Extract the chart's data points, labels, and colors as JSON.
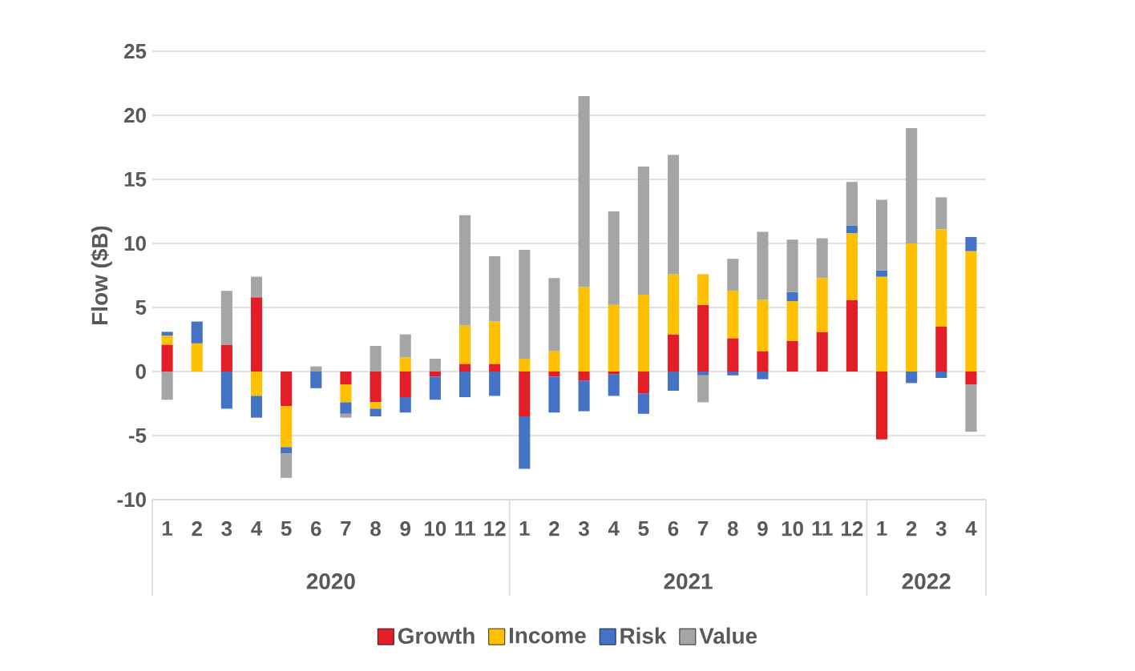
{
  "chart_data": {
    "type": "bar",
    "stacked": true,
    "ylabel": "Flow ($B)",
    "categories": [
      "1",
      "2",
      "3",
      "4",
      "5",
      "6",
      "7",
      "8",
      "9",
      "10",
      "11",
      "12",
      "1",
      "2",
      "3",
      "4",
      "5",
      "6",
      "7",
      "8",
      "9",
      "10",
      "11",
      "12",
      "1",
      "2",
      "3",
      "4"
    ],
    "annotations": [
      "2020",
      "2021",
      "2022"
    ],
    "series": [
      {
        "name": "Growth",
        "color": "#e41e26",
        "values": [
          2.1,
          0,
          2.1,
          5.8,
          -2.7,
          0,
          -1.0,
          -2.4,
          -2.0,
          -0.4,
          0.6,
          0.6,
          -3.5,
          -0.4,
          -0.7,
          -0.2,
          -1.7,
          2.9,
          5.2,
          2.6,
          1.6,
          2.4,
          3.1,
          5.6,
          -5.3,
          0,
          3.5,
          -1.0
        ]
      },
      {
        "name": "Income",
        "color": "#ffc000",
        "values": [
          0.7,
          2.2,
          0,
          -1.9,
          -3.2,
          0,
          -1.4,
          -0.5,
          1.1,
          0,
          3.0,
          3.3,
          1.0,
          1.6,
          6.6,
          5.2,
          6.0,
          4.7,
          2.4,
          3.7,
          4.0,
          3.1,
          4.2,
          5.2,
          7.4,
          10.0,
          7.6,
          9.4
        ]
      },
      {
        "name": "Risk",
        "color": "#4472c4",
        "values": [
          0.3,
          1.7,
          -2.9,
          -1.7,
          -0.5,
          -1.3,
          -0.9,
          -0.6,
          -1.2,
          -1.8,
          -2.0,
          -1.9,
          -4.1,
          -2.8,
          -2.4,
          -1.7,
          -1.6,
          -1.5,
          -0.3,
          -0.3,
          -0.6,
          0.7,
          0,
          0.6,
          0.5,
          -0.9,
          -0.5,
          1.1
        ]
      },
      {
        "name": "Value",
        "color": "#a5a5a5",
        "values": [
          -2.2,
          0,
          4.2,
          1.6,
          -1.9,
          0.4,
          -0.3,
          2.0,
          1.8,
          1.0,
          8.6,
          5.1,
          8.5,
          5.7,
          14.9,
          7.3,
          10.0,
          9.3,
          -2.1,
          2.5,
          5.3,
          4.1,
          3.1,
          3.4,
          5.5,
          9.0,
          2.5,
          -3.7
        ]
      }
    ],
    "ylim": [
      -10,
      25
    ],
    "yticks": [
      -10,
      -5,
      0,
      5,
      10,
      15,
      20,
      25
    ],
    "grid": "y",
    "legend": "bottom"
  }
}
